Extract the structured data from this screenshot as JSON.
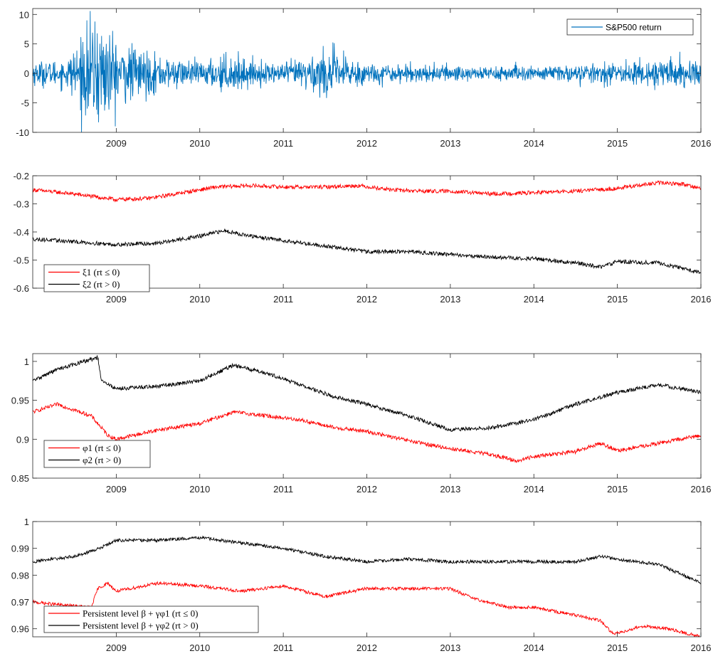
{
  "chart_data": [
    {
      "type": "line",
      "x_ticks": [
        "2009",
        "2010",
        "2011",
        "2012",
        "2013",
        "2014",
        "2015",
        "2016"
      ],
      "xlim": [
        2008.0,
        2016.0
      ],
      "ylim": [
        -10,
        11
      ],
      "y_ticks": [
        "10",
        "5",
        "0",
        "-5",
        "-10"
      ],
      "legend_position": "top-right",
      "series": [
        {
          "name": "S&P500 return",
          "color": "#0072BD",
          "kind": "returns",
          "volatility": {
            "x": [
              2008.0,
              2008.4,
              2008.7,
              2008.85,
              2009.0,
              2009.3,
              2009.6,
              2010.0,
              2010.3,
              2010.45,
              2010.7,
              2011.0,
              2011.55,
              2011.7,
              2012.0,
              2012.5,
              2013.0,
              2014.0,
              2014.8,
              2015.0,
              2015.55,
              2015.7,
              2016.0
            ],
            "y": [
              1.0,
              1.1,
              4.2,
              4.6,
              2.8,
              2.0,
              1.3,
              0.9,
              1.6,
              1.4,
              0.9,
              0.8,
              2.1,
              1.6,
              0.9,
              0.7,
              0.7,
              0.6,
              0.8,
              0.7,
              1.4,
              1.1,
              1.0
            ]
          }
        }
      ]
    },
    {
      "type": "line",
      "x_ticks": [
        "2009",
        "2010",
        "2011",
        "2012",
        "2013",
        "2014",
        "2015",
        "2016"
      ],
      "xlim": [
        2008.0,
        2016.0
      ],
      "ylim": [
        -0.6,
        -0.2
      ],
      "y_ticks": [
        "-0.2",
        "-0.3",
        "-0.4",
        "-0.5",
        "-0.6"
      ],
      "legend_position": "bottom-left",
      "series": [
        {
          "name": "ξ1 (rt ≤ 0)",
          "color": "#FF0000",
          "noise": 0.007,
          "x": [
            2008.0,
            2008.5,
            2009.0,
            2009.4,
            2009.8,
            2010.2,
            2010.6,
            2011.0,
            2011.5,
            2011.9,
            2012.3,
            2012.7,
            2013.0,
            2013.5,
            2014.0,
            2014.5,
            2015.0,
            2015.5,
            2015.8,
            2016.0
          ],
          "y": [
            -0.25,
            -0.265,
            -0.285,
            -0.28,
            -0.26,
            -0.24,
            -0.235,
            -0.24,
            -0.24,
            -0.235,
            -0.25,
            -0.255,
            -0.255,
            -0.265,
            -0.26,
            -0.255,
            -0.245,
            -0.225,
            -0.23,
            -0.245
          ]
        },
        {
          "name": "ξ2 (rt > 0)",
          "color": "#000000",
          "noise": 0.007,
          "x": [
            2008.0,
            2008.5,
            2009.0,
            2009.5,
            2010.0,
            2010.3,
            2010.6,
            2011.0,
            2011.5,
            2012.0,
            2012.5,
            2013.0,
            2013.5,
            2014.0,
            2014.5,
            2014.8,
            2015.0,
            2015.5,
            2016.0
          ],
          "y": [
            -0.425,
            -0.435,
            -0.445,
            -0.44,
            -0.415,
            -0.395,
            -0.415,
            -0.43,
            -0.45,
            -0.47,
            -0.47,
            -0.48,
            -0.49,
            -0.495,
            -0.51,
            -0.525,
            -0.505,
            -0.51,
            -0.545
          ]
        }
      ]
    },
    {
      "type": "line",
      "x_ticks": [
        "2009",
        "2010",
        "2011",
        "2012",
        "2013",
        "2014",
        "2015",
        "2016"
      ],
      "xlim": [
        2008.0,
        2016.0
      ],
      "ylim": [
        0.85,
        1.01
      ],
      "y_ticks": [
        "1",
        "0.95",
        "0.9",
        "0.85"
      ],
      "legend_position": "bottom-left",
      "series": [
        {
          "name": "φ1 (rt ≤ 0)",
          "color": "#FF0000",
          "noise": 0.0025,
          "x": [
            2008.0,
            2008.3,
            2008.7,
            2008.9,
            2009.0,
            2009.5,
            2010.0,
            2010.4,
            2010.8,
            2011.2,
            2011.6,
            2012.0,
            2012.5,
            2013.0,
            2013.5,
            2013.8,
            2014.0,
            2014.5,
            2014.8,
            2015.0,
            2015.5,
            2016.0
          ],
          "y": [
            0.935,
            0.945,
            0.93,
            0.905,
            0.9,
            0.912,
            0.92,
            0.935,
            0.93,
            0.925,
            0.915,
            0.91,
            0.898,
            0.888,
            0.88,
            0.872,
            0.878,
            0.884,
            0.895,
            0.885,
            0.895,
            0.905
          ]
        },
        {
          "name": "φ2 (rt > 0)",
          "color": "#000000",
          "noise": 0.0025,
          "x": [
            2008.0,
            2008.3,
            2008.78,
            2008.82,
            2009.0,
            2009.5,
            2010.0,
            2010.4,
            2010.8,
            2011.2,
            2011.6,
            2012.0,
            2012.5,
            2013.0,
            2013.5,
            2014.0,
            2014.5,
            2015.0,
            2015.5,
            2016.0
          ],
          "y": [
            0.975,
            0.99,
            1.005,
            0.975,
            0.965,
            0.968,
            0.975,
            0.995,
            0.985,
            0.97,
            0.955,
            0.945,
            0.93,
            0.912,
            0.915,
            0.925,
            0.945,
            0.96,
            0.97,
            0.96
          ]
        }
      ]
    },
    {
      "type": "line",
      "x_ticks": [
        "2009",
        "2010",
        "2011",
        "2012",
        "2013",
        "2014",
        "2015",
        "2016"
      ],
      "xlim": [
        2008.0,
        2016.0
      ],
      "ylim": [
        0.957,
        1.0
      ],
      "y_ticks": [
        "1",
        "0.99",
        "0.98",
        "0.97",
        "0.96"
      ],
      "legend_position": "bottom-left",
      "series": [
        {
          "name": "Persistent level β + γφ1 (rt ≤ 0)",
          "color": "#FF0000",
          "noise": 0.0006,
          "x": [
            2008.0,
            2008.3,
            2008.7,
            2008.78,
            2008.9,
            2009.0,
            2009.5,
            2010.0,
            2010.5,
            2011.0,
            2011.5,
            2012.0,
            2012.5,
            2013.0,
            2013.3,
            2013.7,
            2014.0,
            2014.5,
            2014.8,
            2014.95,
            2015.3,
            2015.6,
            2016.0
          ],
          "y": [
            0.97,
            0.969,
            0.968,
            0.975,
            0.977,
            0.974,
            0.977,
            0.976,
            0.974,
            0.976,
            0.972,
            0.975,
            0.975,
            0.975,
            0.971,
            0.968,
            0.968,
            0.965,
            0.963,
            0.958,
            0.961,
            0.96,
            0.957
          ]
        },
        {
          "name": "Persistent level β + γφ2 (rt > 0)",
          "color": "#000000",
          "noise": 0.0006,
          "x": [
            2008.0,
            2008.5,
            2008.8,
            2009.0,
            2009.5,
            2010.0,
            2010.5,
            2011.0,
            2011.5,
            2012.0,
            2012.5,
            2013.0,
            2013.5,
            2014.0,
            2014.5,
            2014.8,
            2015.0,
            2015.5,
            2016.0
          ],
          "y": [
            0.985,
            0.987,
            0.99,
            0.993,
            0.993,
            0.994,
            0.992,
            0.99,
            0.987,
            0.985,
            0.986,
            0.985,
            0.985,
            0.985,
            0.985,
            0.987,
            0.986,
            0.984,
            0.977
          ]
        }
      ]
    }
  ]
}
